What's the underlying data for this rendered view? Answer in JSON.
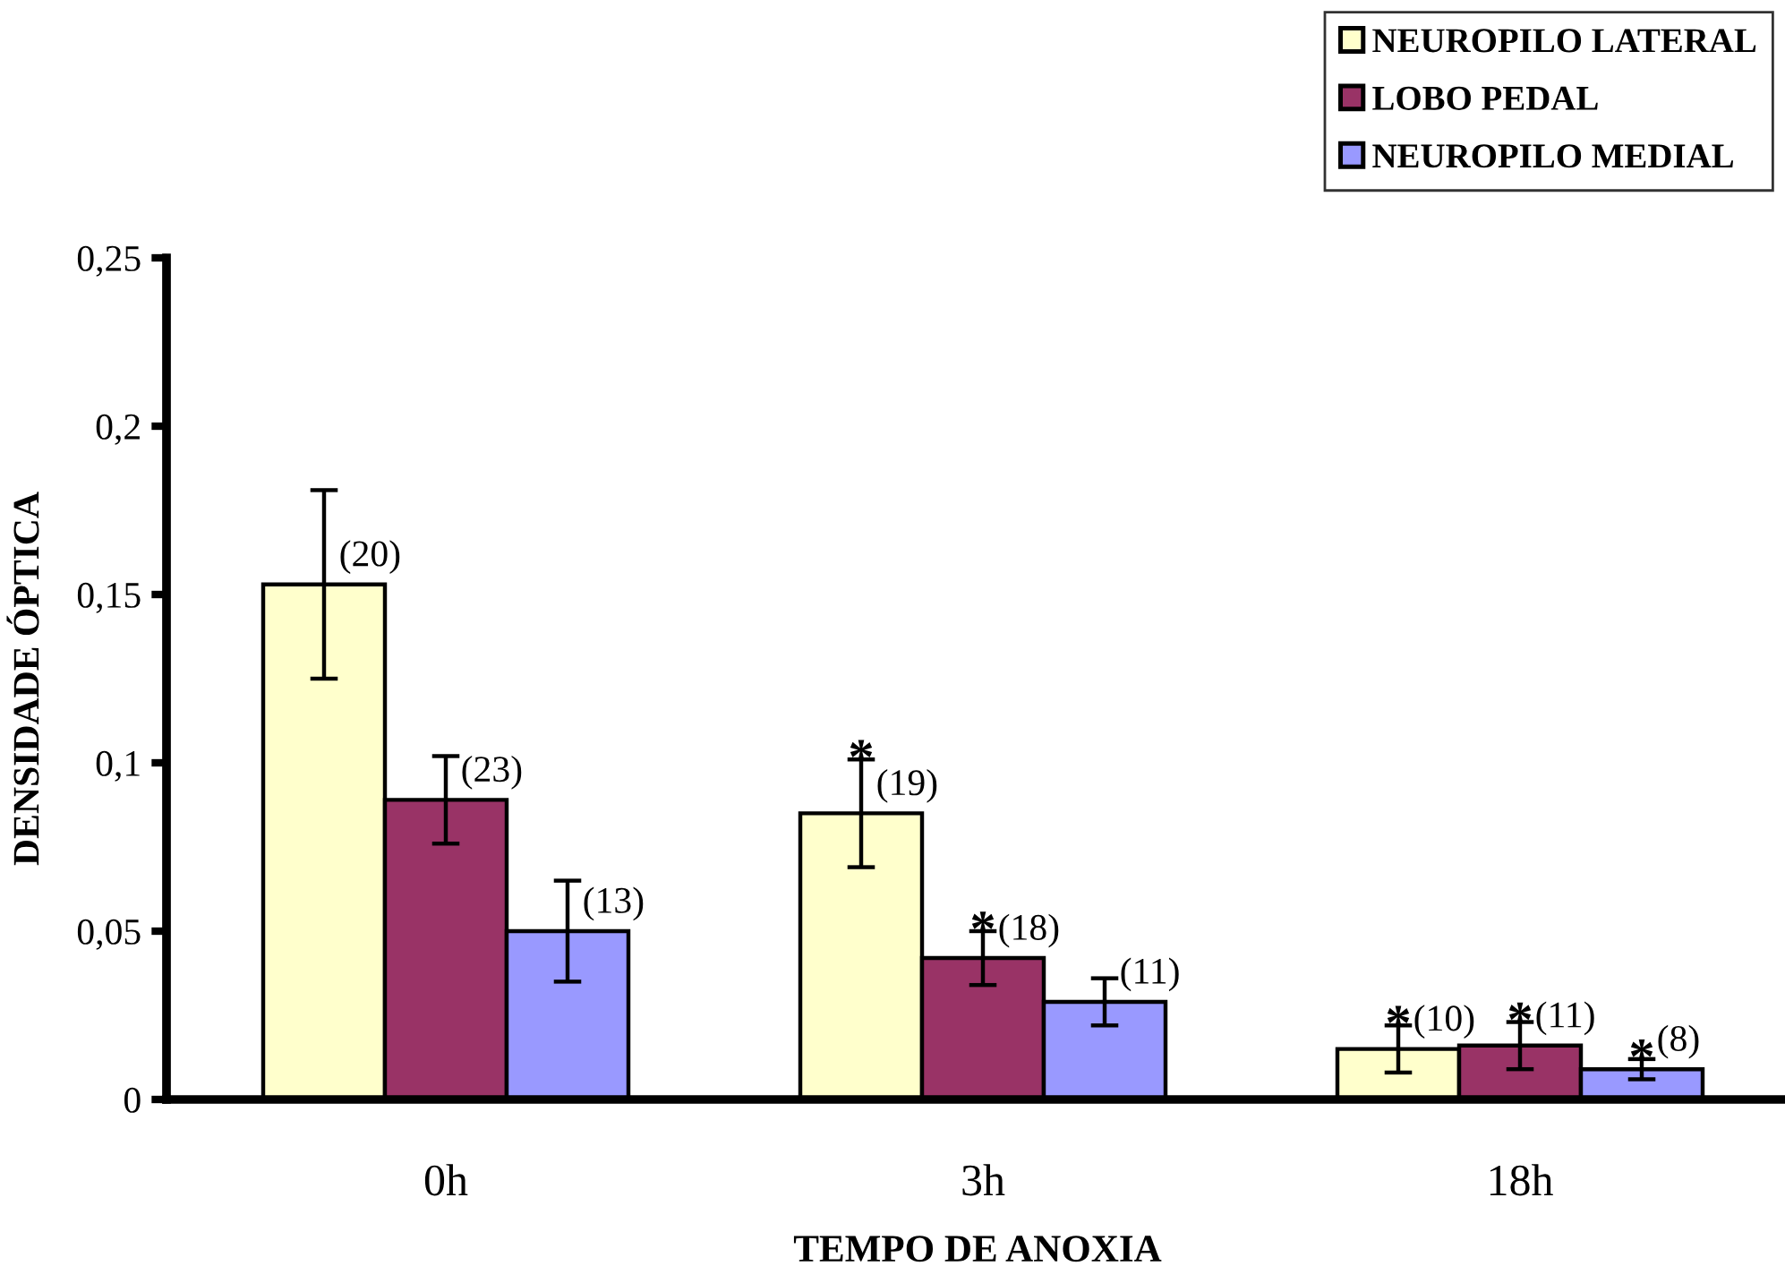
{
  "chart_data": {
    "type": "bar",
    "xlabel": "TEMPO DE ANOXIA",
    "ylabel": "DENSIDADE ÓPTICA",
    "categories": [
      "0h",
      "3h",
      "18h"
    ],
    "series": [
      {
        "name": "NEUROPILO LATERAL",
        "color": "#ffffcc",
        "values": [
          0.153,
          0.085,
          0.015
        ],
        "errors": [
          0.028,
          0.016,
          0.007
        ]
      },
      {
        "name": "LOBO PEDAL",
        "color": "#993366",
        "values": [
          0.089,
          0.042,
          0.016
        ],
        "errors": [
          0.013,
          0.008,
          0.007
        ]
      },
      {
        "name": "NEUROPILO MEDIAL",
        "color": "#9999ff",
        "values": [
          0.05,
          0.029,
          0.009
        ],
        "errors": [
          0.015,
          0.007,
          0.003
        ]
      }
    ],
    "ylim": [
      0,
      0.25
    ],
    "yticks": [
      {
        "value": 0,
        "label": "0"
      },
      {
        "value": 0.05,
        "label": "0,05"
      },
      {
        "value": 0.1,
        "label": "0,1"
      },
      {
        "value": 0.15,
        "label": "0,15"
      },
      {
        "value": 0.2,
        "label": "0,2"
      },
      {
        "value": 0.25,
        "label": "0,25"
      }
    ],
    "legend": "top right",
    "annotations": [
      {
        "text": "(20)",
        "y": 0.153
      },
      {
        "text": "(23)",
        "y": 0.089
      },
      {
        "text": "(13)",
        "y": 0.05
      },
      {
        "text": "(19)",
        "y": 0.085
      },
      {
        "text": "*",
        "y": 0.085
      },
      {
        "text": "(18)",
        "y": 0.042
      },
      {
        "text": "*",
        "y": 0.042
      },
      {
        "text": "(11)",
        "y": 0.029
      },
      {
        "text": "(10)",
        "y": 0.015
      },
      {
        "text": "*",
        "y": 0.015
      },
      {
        "text": "(11)",
        "y": 0.016
      },
      {
        "text": "*",
        "y": 0.016
      },
      {
        "text": "(8)",
        "y": 0.009
      },
      {
        "text": "*",
        "y": 0.009
      }
    ]
  }
}
